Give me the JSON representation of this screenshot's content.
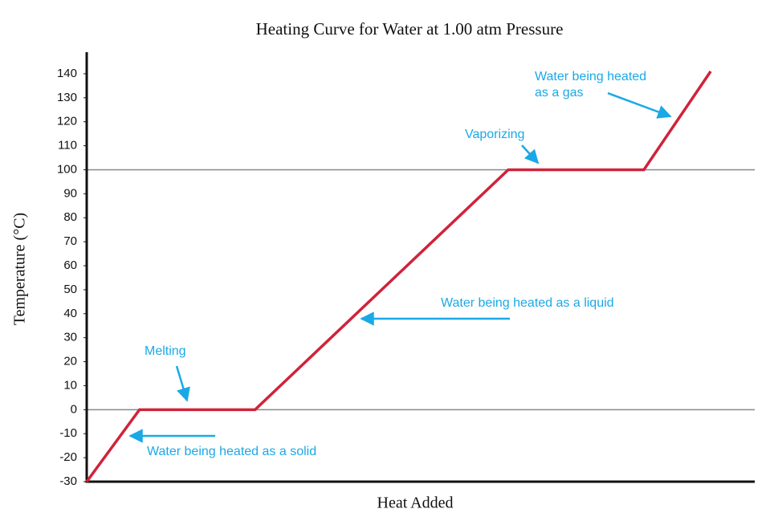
{
  "chart_data": {
    "type": "line",
    "title": "Heating Curve for Water at 1.00 atm Pressure",
    "xlabel": "Heat Added",
    "ylabel": "Temperature (°C)",
    "x": [
      0,
      7.9,
      25.2,
      63.1,
      83.4,
      93.4
    ],
    "values": [
      -30,
      0,
      0,
      100,
      100,
      141
    ],
    "color": "#d0233a",
    "xlim": [
      0,
      100
    ],
    "ylim": [
      -30,
      149
    ],
    "yticks": [
      -30,
      -20,
      -10,
      0,
      10,
      20,
      30,
      40,
      50,
      60,
      70,
      80,
      90,
      100,
      110,
      120,
      130,
      140
    ],
    "hlines": [
      0,
      100
    ],
    "annotations": [
      [
        "Water being heated",
        "as a gas"
      ],
      [
        "Vaporizing"
      ],
      [
        "Water being heated as a liquid"
      ],
      [
        "Melting"
      ],
      [
        "Water being heated as a solid"
      ]
    ]
  }
}
